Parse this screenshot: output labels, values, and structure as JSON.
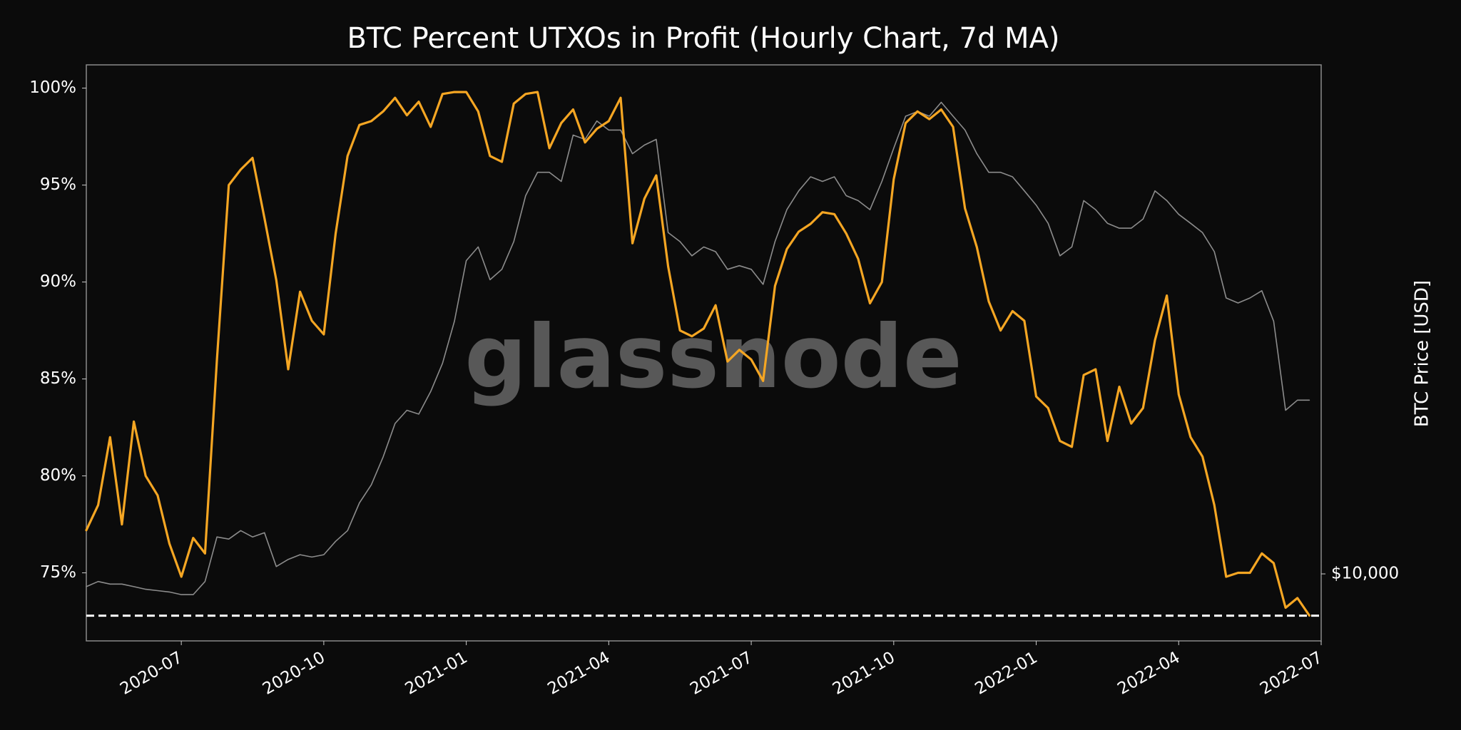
{
  "chart_data": {
    "type": "line",
    "title": "BTC Percent UTXOs in Profit (Hourly Chart, 7d MA)",
    "y2label": "BTC Price [USD]",
    "watermark": "glassnode",
    "x": [
      "2020-05",
      "2020-05",
      "2020-05",
      "2020-05",
      "2020-06",
      "2020-06",
      "2020-06",
      "2020-06",
      "2020-07",
      "2020-07",
      "2020-07",
      "2020-07",
      "2020-08",
      "2020-08",
      "2020-08",
      "2020-08",
      "2020-09",
      "2020-09",
      "2020-09",
      "2020-09",
      "2020-10",
      "2020-10",
      "2020-10",
      "2020-10",
      "2020-11",
      "2020-11",
      "2020-11",
      "2020-11",
      "2020-12",
      "2020-12",
      "2020-12",
      "2020-12",
      "2021-01",
      "2021-01",
      "2021-01",
      "2021-01",
      "2021-02",
      "2021-02",
      "2021-02",
      "2021-02",
      "2021-03",
      "2021-03",
      "2021-03",
      "2021-03",
      "2021-04",
      "2021-04",
      "2021-04",
      "2021-04",
      "2021-05",
      "2021-05",
      "2021-05",
      "2021-05",
      "2021-06",
      "2021-06",
      "2021-06",
      "2021-06",
      "2021-07",
      "2021-07",
      "2021-07",
      "2021-07",
      "2021-08",
      "2021-08",
      "2021-08",
      "2021-08",
      "2021-09",
      "2021-09",
      "2021-09",
      "2021-09",
      "2021-10",
      "2021-10",
      "2021-10",
      "2021-10",
      "2021-11",
      "2021-11",
      "2021-11",
      "2021-11",
      "2021-12",
      "2021-12",
      "2021-12",
      "2021-12",
      "2022-01",
      "2022-01",
      "2022-01",
      "2022-01",
      "2022-02",
      "2022-02",
      "2022-02",
      "2022-02",
      "2022-03",
      "2022-03",
      "2022-03",
      "2022-03",
      "2022-04",
      "2022-04",
      "2022-04",
      "2022-04",
      "2022-05",
      "2022-05",
      "2022-05",
      "2022-05",
      "2022-06",
      "2022-06",
      "2022-06",
      "2022-06"
    ],
    "series": [
      {
        "name": "Percent UTXOs in Profit",
        "color": "#f5a623",
        "axis": "y",
        "values": [
          77.2,
          78.5,
          82,
          77.5,
          82.8,
          80,
          79,
          76.5,
          74.8,
          76.8,
          76,
          86,
          95,
          95.8,
          96.4,
          93.3,
          90.1,
          85.5,
          89.5,
          88,
          87.3,
          92.5,
          96.5,
          98.1,
          98.3,
          98.8,
          99.5,
          98.6,
          99.3,
          98,
          99.7,
          99.8,
          99.8,
          98.8,
          96.5,
          96.2,
          99.2,
          99.7,
          99.8,
          96.9,
          98.2,
          98.9,
          97.2,
          97.9,
          98.3,
          99.5,
          92,
          94.3,
          95.5,
          90.8,
          87.5,
          87.2,
          87.6,
          88.8,
          85.9,
          86.5,
          86,
          84.9,
          89.8,
          91.7,
          92.6,
          93,
          93.6,
          93.5,
          92.5,
          91.2,
          88.9,
          90,
          95.3,
          98.2,
          98.8,
          98.4,
          98.9,
          98,
          93.8,
          91.8,
          89,
          87.5,
          88.5,
          88,
          84.1,
          83.5,
          81.8,
          81.5,
          85.2,
          85.5,
          81.8,
          84.6,
          82.7,
          83.5,
          87,
          89.3,
          84.2,
          82,
          81,
          78.5,
          74.8,
          75,
          75,
          76,
          75.5,
          73.2,
          73.7,
          72.8
        ]
      },
      {
        "name": "BTC Price",
        "color": "#8c8c8c",
        "axis": "y2",
        "values": [
          9500,
          9700,
          9600,
          9600,
          9500,
          9400,
          9350,
          9300,
          9200,
          9200,
          9700,
          11600,
          11500,
          11900,
          11600,
          11800,
          10300,
          10600,
          10800,
          10700,
          10800,
          11400,
          11900,
          13300,
          14300,
          16000,
          18300,
          19300,
          19000,
          20800,
          23300,
          27600,
          35200,
          37200,
          32600,
          34000,
          38000,
          45700,
          50200,
          50200,
          48400,
          58300,
          57300,
          61700,
          59500,
          59500,
          54100,
          56000,
          57300,
          39400,
          38000,
          35900,
          37200,
          36500,
          34000,
          34500,
          34000,
          32000,
          38000,
          43200,
          46600,
          49300,
          48400,
          49300,
          45700,
          44800,
          43200,
          48400,
          55300,
          62900,
          64100,
          62900,
          66500,
          62900,
          59500,
          54100,
          50200,
          50200,
          49300,
          46600,
          44000,
          40900,
          35900,
          37200,
          44800,
          43200,
          40900,
          40100,
          40100,
          41600,
          46600,
          44800,
          42400,
          40900,
          39400,
          36500,
          30300,
          29700,
          30300,
          31200,
          27600,
          19300,
          20100,
          20100
        ]
      }
    ],
    "xlim": [
      "2020-05",
      "2022-07"
    ],
    "xticks": [
      "2020-07",
      "2020-10",
      "2021-01",
      "2021-04",
      "2021-07",
      "2021-10",
      "2022-01",
      "2022-04",
      "2022-07"
    ],
    "ylim": [
      71.49,
      101.2
    ],
    "yticks": [
      {
        "value": 75,
        "label": "75%"
      },
      {
        "value": 80,
        "label": "80%"
      },
      {
        "value": 85,
        "label": "85%"
      },
      {
        "value": 90,
        "label": "90%"
      },
      {
        "value": 95,
        "label": "95%"
      },
      {
        "value": 100,
        "label": "100%"
      }
    ],
    "y2lim": [
      7640,
      77300
    ],
    "y2scale": "log",
    "y2ticks": [
      {
        "value": 10000,
        "label": "$10,000"
      }
    ],
    "hline": {
      "value": 72.79,
      "color": "#ffffff",
      "dashed": true
    },
    "grid": false
  }
}
